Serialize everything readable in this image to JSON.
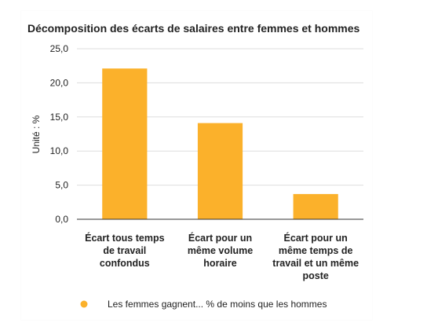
{
  "chart_data": {
    "type": "bar",
    "title": "Décomposition des écarts de salaires entre femmes et hommes",
    "ylabel": "Unité : %",
    "xlabel": "",
    "ylim": [
      0,
      25
    ],
    "yticks": [
      "0,0",
      "5,0",
      "10,0",
      "15,0",
      "20,0",
      "25,0"
    ],
    "categories": [
      [
        "Écart tous temps",
        "de travail",
        "confondus"
      ],
      [
        "Écart pour un",
        "même volume",
        "horaire"
      ],
      [
        "Écart pour un",
        "même temps de",
        "travail et un même",
        "poste"
      ]
    ],
    "series": [
      {
        "name": "Les femmes gagnent... % de moins que les hommes",
        "values": [
          22.1,
          14.1,
          3.7
        ],
        "color": "#fbb12b"
      }
    ],
    "grid": true,
    "legend_position": "bottom"
  }
}
